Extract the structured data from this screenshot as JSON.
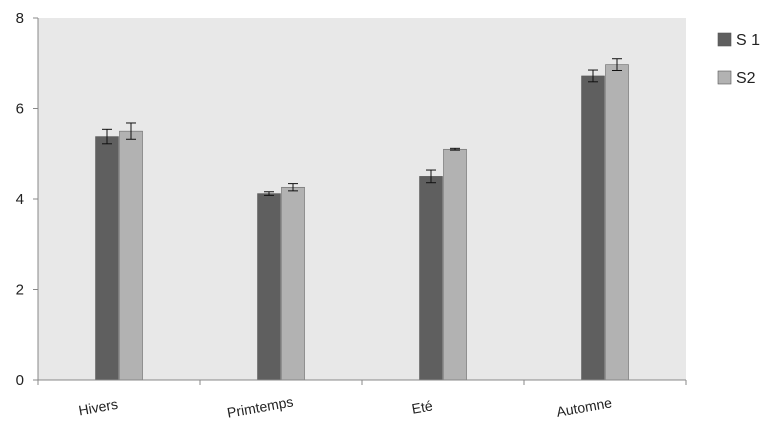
{
  "chart_data": {
    "type": "bar",
    "title": "",
    "xlabel": "",
    "ylabel": "",
    "categories": [
      "Hivers",
      "Primtemps",
      "Eté",
      "Automne"
    ],
    "series": [
      {
        "name": "S 1",
        "color": "#5f5f5f",
        "values": [
          5.38,
          4.12,
          4.5,
          6.72
        ],
        "errors": [
          0.16,
          0.04,
          0.14,
          0.13
        ]
      },
      {
        "name": "S2",
        "color": "#b2b2b2",
        "values": [
          5.5,
          4.26,
          5.1,
          6.97
        ],
        "errors": [
          0.18,
          0.08,
          0.02,
          0.13
        ]
      }
    ],
    "ylim": [
      0,
      8
    ],
    "yticks": [
      0,
      2,
      4,
      6,
      8
    ],
    "legend_position": "right",
    "plot_background": "#e8e8e8",
    "grid": false
  }
}
